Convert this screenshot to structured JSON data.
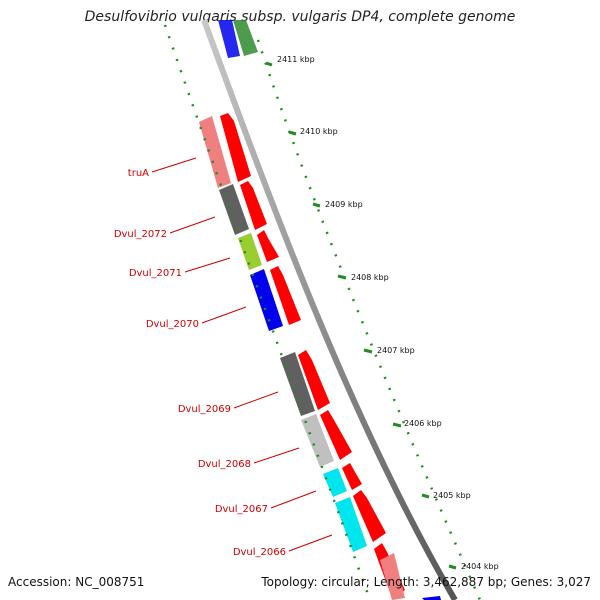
{
  "title": "Desulfovibrio vulgaris subsp. vulgaris DP4, complete genome",
  "accession": "Accession: NC_008751",
  "summary": "Topology: circular; Length: 3,462,887 bp; Genes: 3,027",
  "scale_labels": [
    "2411 kbp",
    "2410 kbp",
    "2409 kbp",
    "2408 kbp",
    "2407 kbp",
    "2406 kbp",
    "2405 kbp",
    "2404 kbp"
  ],
  "gene_labels": [
    "truA",
    "Dvul_2072",
    "Dvul_2071",
    "Dvul_2070",
    "Dvul_2069",
    "Dvul_2068",
    "Dvul_2067",
    "Dvul_2066"
  ],
  "colors": {
    "backbone": "#888888",
    "cds_arrow": "#ff0000",
    "tick": "#228b22",
    "label_line": "#cc0000",
    "gene_truA": "#f08080",
    "gene_2072": "#606060",
    "gene_2071": "#9acd32",
    "gene_2070": "#0000ee",
    "gene_2069": "#606060",
    "gene_2068": "#c0c0c0",
    "gene_2067": "#00e5ee",
    "gene_2066": "#00e5ee"
  }
}
